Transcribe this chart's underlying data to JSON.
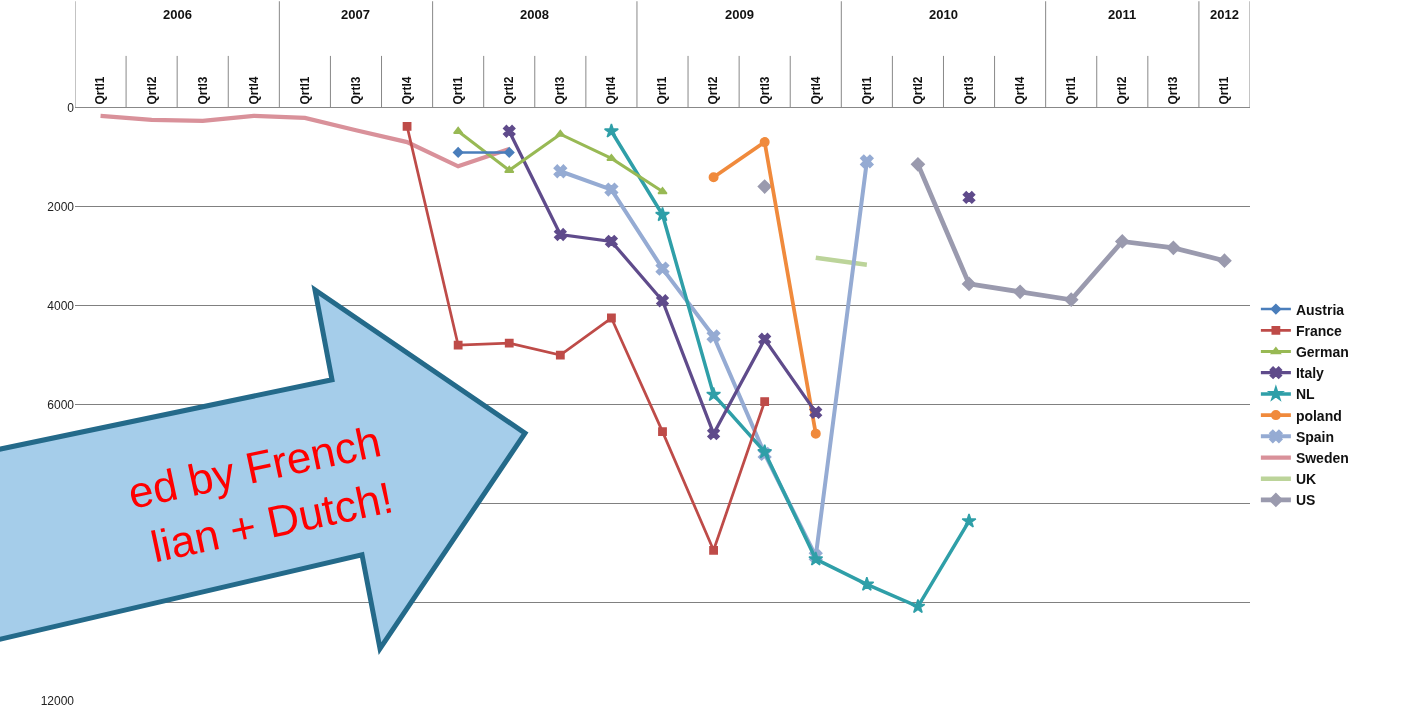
{
  "chart_data": {
    "type": "line",
    "categories": [
      [
        "2006",
        "Qrtl1"
      ],
      [
        null,
        "Qrtl2"
      ],
      [
        null,
        "Qrtl3"
      ],
      [
        null,
        "Qrtl4"
      ],
      [
        "2007",
        "Qrtl1"
      ],
      [
        null,
        "Qrtl3"
      ],
      [
        null,
        "Qrtl4"
      ],
      [
        "2008",
        "Qrtl1"
      ],
      [
        null,
        "Qrtl2"
      ],
      [
        null,
        "Qrtl3"
      ],
      [
        null,
        "Qrtl4"
      ],
      [
        "2009",
        "Qrtl1"
      ],
      [
        null,
        "Qrtl2"
      ],
      [
        null,
        "Qrtl3"
      ],
      [
        null,
        "Qrtl4"
      ],
      [
        "2010",
        "Qrtl1"
      ],
      [
        null,
        "Qrtl2"
      ],
      [
        null,
        "Qrtl3"
      ],
      [
        null,
        "Qrtl4"
      ],
      [
        "2011",
        "Qrtl1"
      ],
      [
        null,
        "Qrtl2"
      ],
      [
        null,
        "Qrtl3"
      ],
      [
        "2012",
        "Qrtl1"
      ]
    ],
    "series": [
      {
        "name": "Austria",
        "color": "#4a7ebb",
        "marker": "diamond",
        "values": [
          null,
          null,
          null,
          null,
          null,
          null,
          null,
          900,
          900,
          null,
          null,
          null,
          null,
          null,
          null,
          null,
          null,
          null,
          null,
          null,
          null,
          null,
          null
        ]
      },
      {
        "name": "France",
        "color": "#be4b48",
        "marker": "square",
        "values": [
          null,
          null,
          null,
          null,
          null,
          null,
          370,
          4800,
          4760,
          5000,
          4250,
          6550,
          8950,
          5940,
          null,
          null,
          null,
          null,
          null,
          null,
          null,
          null,
          null
        ]
      },
      {
        "name": "German",
        "color": "#98b954",
        "marker": "triangle",
        "values": [
          null,
          null,
          null,
          null,
          null,
          null,
          null,
          470,
          1260,
          530,
          1020,
          1690,
          null,
          null,
          null,
          null,
          null,
          null,
          null,
          null,
          null,
          null,
          null
        ]
      },
      {
        "name": "Italy",
        "color": "#5f4b8b",
        "marker": "cross",
        "values": [
          null,
          null,
          null,
          null,
          null,
          null,
          null,
          null,
          470,
          2560,
          2700,
          3900,
          6590,
          4680,
          6160,
          null,
          null,
          1810,
          null,
          null,
          null,
          null,
          null
        ]
      },
      {
        "name": "NL",
        "color": "#2f9fa8",
        "marker": "star",
        "values": [
          null,
          null,
          null,
          null,
          null,
          null,
          null,
          null,
          null,
          null,
          470,
          2160,
          5800,
          6960,
          9130,
          9640,
          10090,
          8360,
          null,
          null,
          null,
          null,
          null
        ]
      },
      {
        "name": "poland",
        "color": "#f08a3c",
        "marker": "circle",
        "values": [
          null,
          null,
          null,
          null,
          null,
          null,
          null,
          null,
          null,
          null,
          null,
          null,
          1400,
          690,
          6590,
          null,
          null,
          null,
          null,
          null,
          null,
          null,
          null
        ]
      },
      {
        "name": "Spain",
        "color": "#95abd3",
        "marker": "cross",
        "values": [
          null,
          null,
          null,
          null,
          null,
          null,
          null,
          null,
          null,
          1280,
          1650,
          3250,
          4620,
          7000,
          9070,
          1080,
          null,
          null,
          null,
          null,
          null,
          null,
          null
        ]
      },
      {
        "name": "Sweden",
        "color": "#d9919a",
        "marker": "none",
        "values": [
          160,
          240,
          260,
          160,
          200,
          450,
          690,
          1180,
          830,
          null,
          null,
          null,
          null,
          null,
          null,
          null,
          null,
          null,
          null,
          null,
          null,
          null,
          null
        ]
      },
      {
        "name": "UK",
        "color": "#bcd49a",
        "marker": "none",
        "values": [
          null,
          null,
          null,
          null,
          null,
          null,
          null,
          null,
          null,
          null,
          null,
          null,
          null,
          null,
          3030,
          3170,
          null,
          null,
          null,
          null,
          null,
          null,
          null
        ]
      },
      {
        "name": "US",
        "color": "#9a9aae",
        "marker": "diamond",
        "values": [
          null,
          null,
          null,
          null,
          null,
          null,
          null,
          null,
          null,
          null,
          null,
          null,
          null,
          1590,
          null,
          null,
          1140,
          3560,
          3720,
          3880,
          2700,
          2830,
          3090
        ]
      }
    ],
    "ylim": [
      12000,
      0
    ],
    "yticks": [
      0,
      2000,
      4000,
      6000,
      {
        "value": 8000,
        "label": null
      },
      {
        "value": 10000,
        "label": null
      },
      12000
    ],
    "grid": "y",
    "legend": "right",
    "line_style": "solid",
    "annotations": [
      "ed by French",
      "lian + Dutch!"
    ]
  }
}
